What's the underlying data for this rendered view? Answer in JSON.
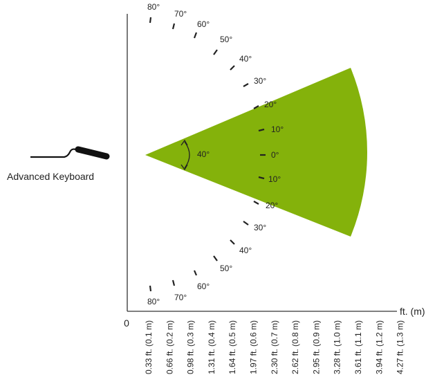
{
  "device_label": "Advanced Keyboard",
  "sector": {
    "half_angle_label": "40°",
    "half_angle_deg": 40,
    "color": "#84b20b"
  },
  "axis": {
    "origin_label": "0",
    "unit_label": "ft. (m)",
    "ticks": [
      "0.33 ft. (0.1 m)",
      "0.66 ft. (0.2 m)",
      "0.98 ft. (0.3 m)",
      "1.31 ft. (0.4 m)",
      "1.64 ft. (0.5 m)",
      "1.97 ft. (0.6 m)",
      "2.30 ft. (0.7 m)",
      "2.62 ft. (0.8 m)",
      "2.95 ft. (0.9 m)",
      "3.28 ft. (1.0 m)",
      "3.61 ft. (1.1 m)",
      "3.94 ft. (1.2 m)",
      "4.27 ft. (1.3 m)"
    ]
  },
  "angle_labels": {
    "top": [
      "0°",
      "10°",
      "20°",
      "30°",
      "40°",
      "50°",
      "60°",
      "70°",
      "80°"
    ],
    "bottom": [
      "10°",
      "20°",
      "30°",
      "40°",
      "50°",
      "60°",
      "70°",
      "80°"
    ]
  }
}
